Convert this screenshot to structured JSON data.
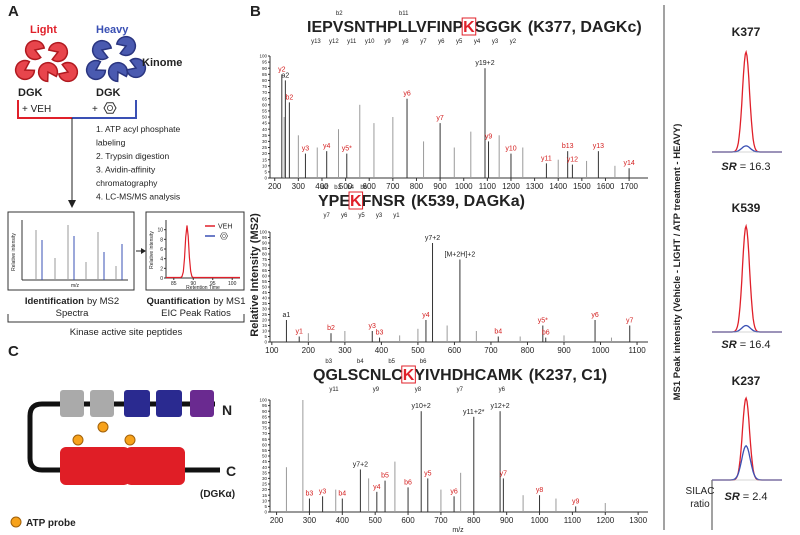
{
  "panel_a": {
    "label": "A",
    "light": "Light",
    "heavy": "Heavy",
    "kinome": "Kinome",
    "dgk_light": "DGK",
    "dgk_heavy": "DGK",
    "veh": "+ VEH",
    "plus": "+",
    "steps": [
      "1. ATP acyl phosphate",
      "labeling",
      "2. Trypsin digestion",
      "3. Avidin-affinity",
      "chromatography",
      "4. LC-MS/MS analysis"
    ],
    "ms2_inset": {
      "y_label": "Relative intensity",
      "x_label": "m/z"
    },
    "eic_inset": {
      "y_label": "Relative intensity",
      "x_label": "Retention Time",
      "legend": "VEH",
      "xlim": [
        83,
        102
      ],
      "xticks": [
        85,
        90,
        95,
        100
      ],
      "ylim": [
        0,
        12
      ],
      "yticks": [
        0,
        2,
        4,
        6,
        8,
        10
      ]
    },
    "identification": {
      "bold": "Identification",
      "rest": "by MS2",
      "line2": "Spectra"
    },
    "quantification": {
      "bold": "Quantification",
      "rest": "by MS1",
      "line2": "EIC Peak Ratios"
    },
    "footer": "Kinase active site peptides"
  },
  "panel_b": {
    "label": "B",
    "y_label": "Relative Intensity (MS2)",
    "x_label": "m/z",
    "color": "#9a9a9a",
    "peak_color": "#333333",
    "spectra": [
      {
        "sequence": [
          "IEPVSNTHPLLVFINP",
          "K",
          "SGGK"
        ],
        "site": "(K377, DAGKc)",
        "top_ladder": [
          "b2",
          "b11"
        ],
        "bottom_ladder": [
          "y13",
          "y12",
          "y11",
          "y10",
          "y9",
          "y8",
          "y7",
          "y6",
          "y5",
          "y4",
          "y3",
          "y2"
        ],
        "xlim": [
          180,
          1780
        ],
        "xticks": [
          200,
          300,
          400,
          500,
          600,
          700,
          800,
          900,
          1000,
          1100,
          1200,
          1300,
          1400,
          1500,
          1600,
          1700
        ],
        "ylim": [
          0,
          100
        ],
        "yticks": [
          0,
          5,
          10,
          15,
          20,
          25,
          30,
          35,
          40,
          45,
          50,
          55,
          60,
          65,
          70,
          75,
          80,
          85,
          90,
          95,
          100
        ],
        "peaks": [
          {
            "x": 230,
            "y": 85,
            "label": "y2",
            "color": "#d42020"
          },
          {
            "x": 245,
            "y": 80,
            "label": "a2",
            "color": "#222222"
          },
          {
            "x": 262,
            "y": 62,
            "label": "b2",
            "color": "#d42020"
          },
          {
            "x": 330,
            "y": 20,
            "label": "y3",
            "color": "#d42020"
          },
          {
            "x": 420,
            "y": 22,
            "label": "y4",
            "color": "#d42020"
          },
          {
            "x": 505,
            "y": 20,
            "label": "y5*",
            "color": "#d42020"
          },
          {
            "x": 760,
            "y": 65,
            "label": "y6",
            "color": "#d42020"
          },
          {
            "x": 900,
            "y": 45,
            "label": "y7",
            "color": "#d42020"
          },
          {
            "x": 1090,
            "y": 90,
            "label": "y19+2",
            "color": "#222222"
          },
          {
            "x": 1105,
            "y": 30,
            "label": "y9",
            "color": "#d42020"
          },
          {
            "x": 1200,
            "y": 20,
            "label": "y10",
            "color": "#d42020"
          },
          {
            "x": 1350,
            "y": 12,
            "label": "y11",
            "color": "#d42020"
          },
          {
            "x": 1440,
            "y": 22,
            "label": "b13",
            "color": "#d42020"
          },
          {
            "x": 1460,
            "y": 11,
            "label": "y12",
            "color": "#d42020"
          },
          {
            "x": 1570,
            "y": 22,
            "label": "y13",
            "color": "#d42020"
          },
          {
            "x": 1700,
            "y": 8,
            "label": "y14",
            "color": "#d42020"
          },
          {
            "x": 240,
            "y": 50
          },
          {
            "x": 300,
            "y": 35
          },
          {
            "x": 380,
            "y": 25
          },
          {
            "x": 470,
            "y": 40
          },
          {
            "x": 560,
            "y": 60
          },
          {
            "x": 620,
            "y": 45
          },
          {
            "x": 700,
            "y": 50
          },
          {
            "x": 830,
            "y": 30
          },
          {
            "x": 960,
            "y": 25
          },
          {
            "x": 1030,
            "y": 38
          },
          {
            "x": 1150,
            "y": 35
          },
          {
            "x": 1250,
            "y": 25
          },
          {
            "x": 1400,
            "y": 15
          },
          {
            "x": 1520,
            "y": 14
          },
          {
            "x": 1640,
            "y": 10
          }
        ]
      },
      {
        "sequence": [
          "YPE",
          "K",
          "FNSR"
        ],
        "site": "(K539, DAGKa)",
        "top_ladder": [
          "b2",
          "b3",
          "b4",
          "b6"
        ],
        "bottom_ladder": [
          "y7",
          "y6",
          "y5",
          "y3",
          "y1"
        ],
        "xlim": [
          95,
          1130
        ],
        "xticks": [
          100,
          200,
          300,
          400,
          500,
          600,
          700,
          800,
          900,
          1000,
          1100
        ],
        "ylim": [
          0,
          100
        ],
        "yticks": [
          0,
          5,
          10,
          15,
          20,
          25,
          30,
          35,
          40,
          45,
          50,
          55,
          60,
          65,
          70,
          75,
          80,
          85,
          90,
          95,
          100
        ],
        "peaks": [
          {
            "x": 140,
            "y": 20,
            "label": "a1",
            "color": "#222222"
          },
          {
            "x": 175,
            "y": 5,
            "label": "y1",
            "color": "#d42020"
          },
          {
            "x": 262,
            "y": 8,
            "label": "b2",
            "color": "#d42020"
          },
          {
            "x": 375,
            "y": 10,
            "label": "y3",
            "color": "#d42020"
          },
          {
            "x": 395,
            "y": 4,
            "label": "b3",
            "color": "#d42020"
          },
          {
            "x": 522,
            "y": 20,
            "label": "y4",
            "color": "#d42020"
          },
          {
            "x": 540,
            "y": 90,
            "label": "y7+2",
            "color": "#222222"
          },
          {
            "x": 615,
            "y": 75,
            "label": "[M+2H]+2",
            "color": "#222222"
          },
          {
            "x": 720,
            "y": 5,
            "label": "b4",
            "color": "#d42020"
          },
          {
            "x": 842,
            "y": 15,
            "label": "y5*",
            "color": "#d42020"
          },
          {
            "x": 850,
            "y": 4,
            "label": "b6",
            "color": "#d42020"
          },
          {
            "x": 985,
            "y": 20,
            "label": "y6",
            "color": "#d42020"
          },
          {
            "x": 1080,
            "y": 15,
            "label": "y7",
            "color": "#d42020"
          },
          {
            "x": 200,
            "y": 8
          },
          {
            "x": 300,
            "y": 10
          },
          {
            "x": 450,
            "y": 6
          },
          {
            "x": 500,
            "y": 12
          },
          {
            "x": 580,
            "y": 15
          },
          {
            "x": 660,
            "y": 10
          },
          {
            "x": 780,
            "y": 5
          },
          {
            "x": 900,
            "y": 6
          },
          {
            "x": 1030,
            "y": 4
          }
        ]
      },
      {
        "sequence": [
          "QGLSCNLC",
          "K",
          "YIVHDHCAMK"
        ],
        "site": "(K237, C1)",
        "top_ladder": [
          "b3",
          "b4",
          "b5",
          "b6"
        ],
        "bottom_ladder": [
          "y11",
          "y9",
          "y8",
          "y7",
          "y6"
        ],
        "xlim": [
          180,
          1330
        ],
        "xticks": [
          200,
          300,
          400,
          500,
          600,
          700,
          800,
          900,
          1000,
          1100,
          1200,
          1300
        ],
        "ylim": [
          0,
          100
        ],
        "yticks": [
          0,
          5,
          10,
          15,
          20,
          25,
          30,
          35,
          40,
          45,
          50,
          55,
          60,
          65,
          70,
          75,
          80,
          85,
          90,
          95,
          100
        ],
        "peaks": [
          {
            "x": 300,
            "y": 12,
            "label": "b3",
            "color": "#d42020"
          },
          {
            "x": 340,
            "y": 14,
            "label": "y3",
            "color": "#d42020"
          },
          {
            "x": 400,
            "y": 12,
            "label": "b4",
            "color": "#d42020"
          },
          {
            "x": 455,
            "y": 38,
            "label": "y7+2",
            "color": "#222222"
          },
          {
            "x": 505,
            "y": 18,
            "label": "y4",
            "color": "#d42020"
          },
          {
            "x": 530,
            "y": 28,
            "label": "b5",
            "color": "#d42020"
          },
          {
            "x": 600,
            "y": 22,
            "label": "b6",
            "color": "#d42020"
          },
          {
            "x": 640,
            "y": 90,
            "label": "y10+2",
            "color": "#222222"
          },
          {
            "x": 660,
            "y": 30,
            "label": "y5",
            "color": "#d42020"
          },
          {
            "x": 740,
            "y": 14,
            "label": "y6",
            "color": "#d42020"
          },
          {
            "x": 800,
            "y": 85,
            "label": "y11+2*",
            "color": "#222222"
          },
          {
            "x": 880,
            "y": 90,
            "label": "y12+2",
            "color": "#222222"
          },
          {
            "x": 890,
            "y": 30,
            "label": "y7",
            "color": "#d42020"
          },
          {
            "x": 1000,
            "y": 15,
            "label": "y8",
            "color": "#d42020"
          },
          {
            "x": 1110,
            "y": 5,
            "label": "y9",
            "color": "#d42020"
          },
          {
            "x": 280,
            "y": 100
          },
          {
            "x": 230,
            "y": 40
          },
          {
            "x": 380,
            "y": 20
          },
          {
            "x": 480,
            "y": 30
          },
          {
            "x": 560,
            "y": 45
          },
          {
            "x": 700,
            "y": 20
          },
          {
            "x": 760,
            "y": 35
          },
          {
            "x": 950,
            "y": 15
          },
          {
            "x": 1050,
            "y": 12
          },
          {
            "x": 1200,
            "y": 8
          }
        ]
      }
    ]
  },
  "panel_c": {
    "label": "C",
    "n": "N",
    "c": "C",
    "protein": "(DGKα)",
    "legend": "ATP probe"
  },
  "panel_eic": {
    "y_label": "MS1 Peak intensity (Vehicle - LIGHT / ATP treatment - HEAVY)",
    "silac": [
      "SILAC",
      "ratio"
    ],
    "light_color": "#e0202a",
    "heavy_color": "#3a50b4",
    "traces": [
      {
        "site": "K377",
        "sr_name": "SR",
        "sr_sign": "=",
        "sr": 16.3
      },
      {
        "site": "K539",
        "sr_name": "SR",
        "sr_sign": "=",
        "sr": 16.4
      },
      {
        "site": "K237",
        "sr_name": "SR",
        "sr_sign": "=",
        "sr": 2.4
      }
    ]
  }
}
